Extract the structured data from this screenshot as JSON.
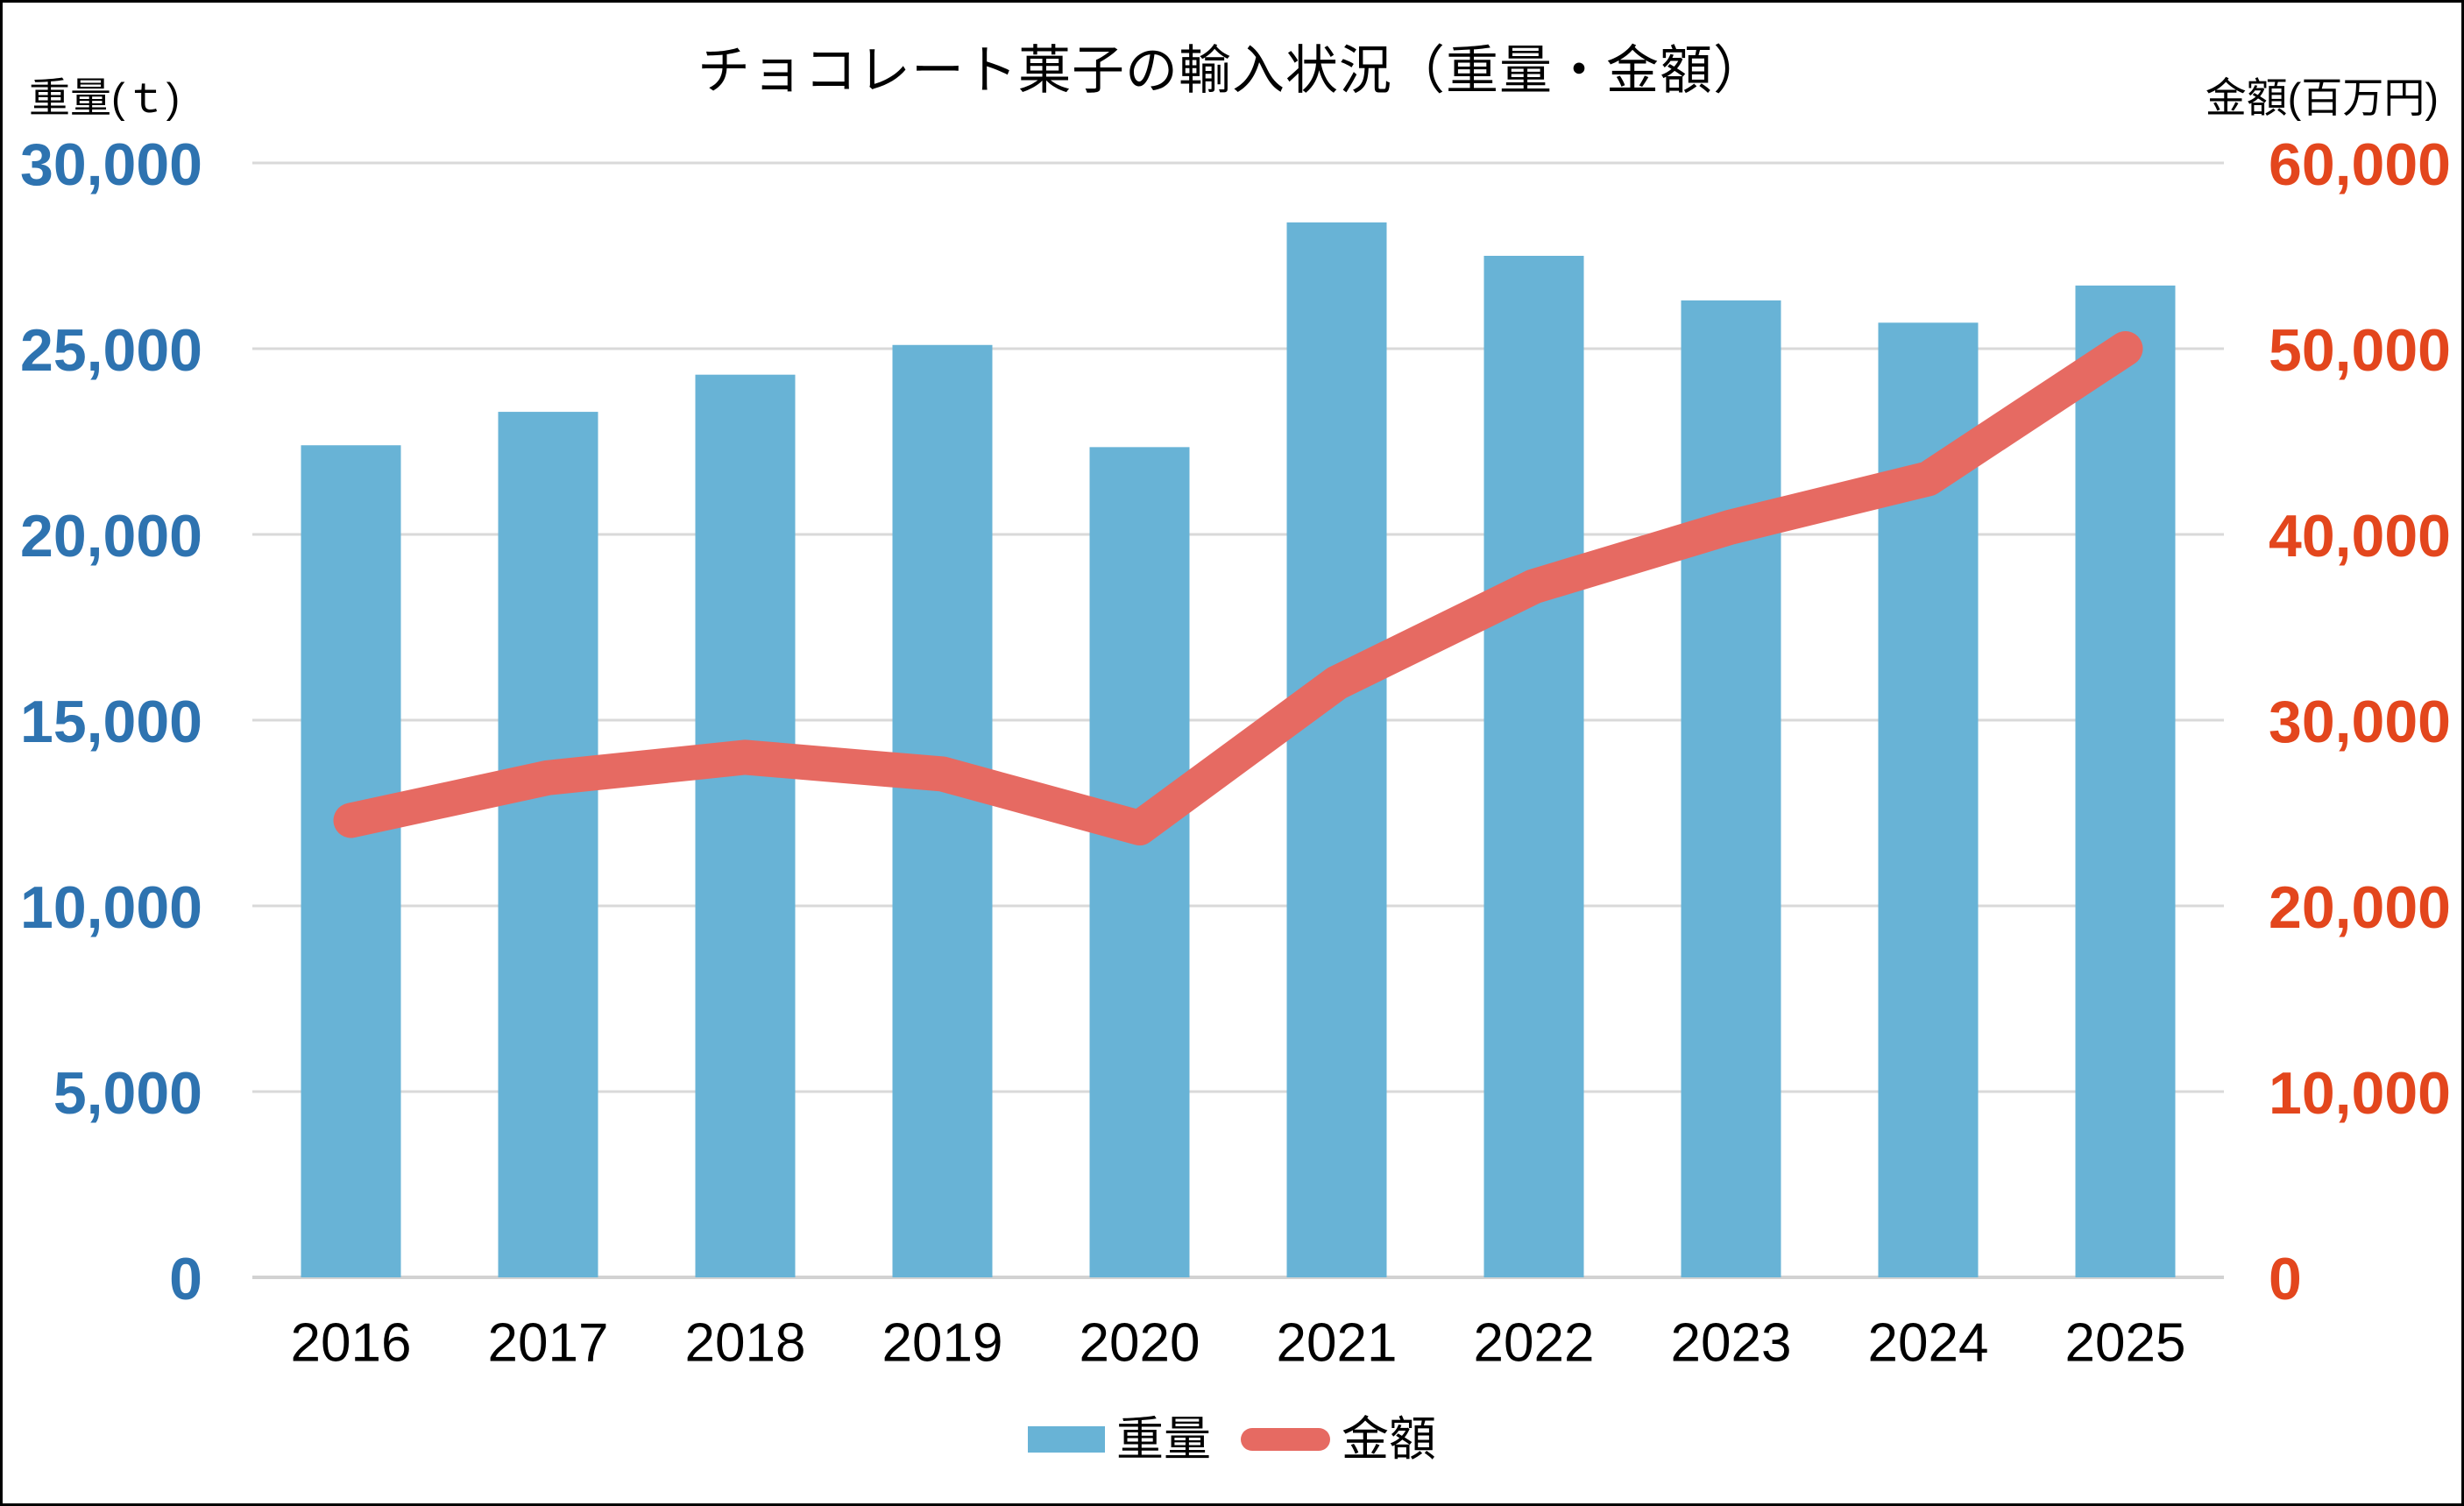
{
  "chart_data": {
    "type": "combo-bar-line",
    "title": "チョコレート菓子の輸入状況（重量・金額）",
    "categories": [
      "2016",
      "2017",
      "2018",
      "2019",
      "2020",
      "2021",
      "2022",
      "2023",
      "2024",
      "2025"
    ],
    "series": [
      {
        "name": "重量",
        "type": "bar",
        "axis": "left",
        "color": "#68B3D6",
        "values": [
          22400,
          23300,
          24300,
          25100,
          22350,
          28400,
          27500,
          26300,
          25700,
          26700
        ]
      },
      {
        "name": "金額",
        "type": "line",
        "axis": "right",
        "color": "#E66A62",
        "values": [
          24600,
          26900,
          28000,
          27100,
          24200,
          32000,
          37200,
          40400,
          43000,
          50000
        ]
      }
    ],
    "axes": {
      "left": {
        "label": "重量(ｔ)",
        "min": 0,
        "max": 30000,
        "step": 5000,
        "tick_labels": [
          "0",
          "5,000",
          "10,000",
          "15,000",
          "20,000",
          "25,000",
          "30,000"
        ],
        "color": "#2E73B0"
      },
      "right": {
        "label": "金額(百万円)",
        "min": 0,
        "max": 60000,
        "step": 10000,
        "tick_labels": [
          "0",
          "10,000",
          "20,000",
          "30,000",
          "40,000",
          "50,000",
          "60,000"
        ],
        "color": "#E3461D"
      }
    },
    "legend": {
      "position": "bottom",
      "items": [
        "重量",
        "金額"
      ]
    },
    "grid": true,
    "grid_color": "#D9D9D9",
    "axis_line_color": "#D2D2D2",
    "background": "#FFFFFF",
    "border_color": "#000000"
  }
}
